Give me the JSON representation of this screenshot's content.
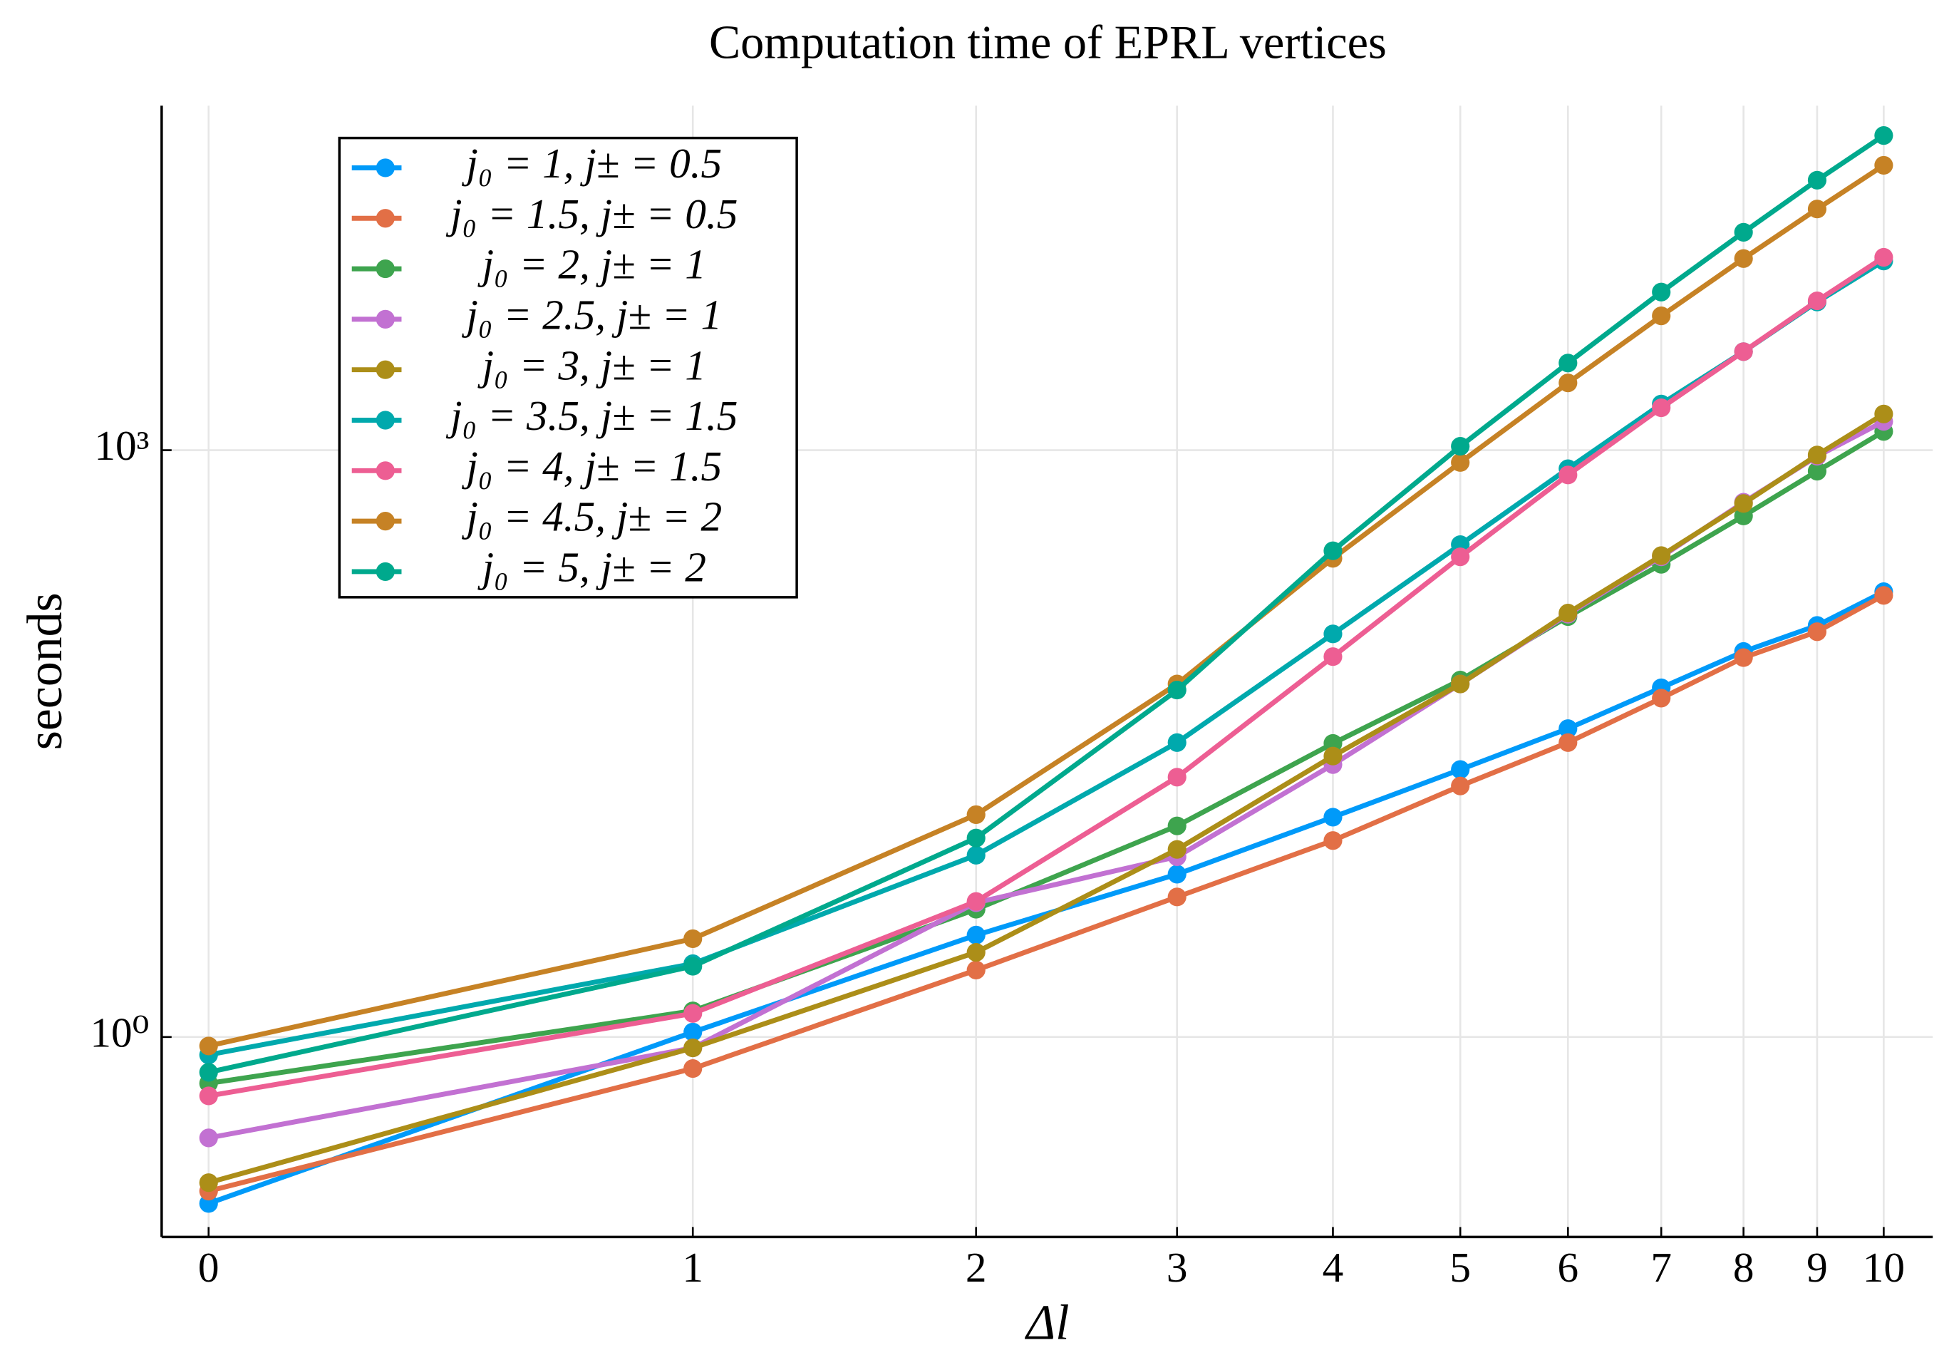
{
  "chart_data": {
    "type": "line",
    "title": "Computation time of EPRL vertices",
    "xlabel": "Δl",
    "ylabel": "seconds",
    "x": [
      0,
      1,
      2,
      3,
      4,
      5,
      6,
      7,
      8,
      9,
      10
    ],
    "xscale": "log1p",
    "yscale": "log",
    "xlim": [
      -0.065,
      10.8
    ],
    "ylim": [
      0.095,
      57700
    ],
    "xticks": [
      0,
      1,
      2,
      3,
      4,
      5,
      6,
      7,
      8,
      9,
      10
    ],
    "yticks": [
      {
        "value": 1,
        "label": "10⁰"
      },
      {
        "value": 1000,
        "label": "10³"
      }
    ],
    "grid": true,
    "legend": "top left",
    "series": [
      {
        "name": "j₀ = 1, j± = 0.5",
        "color": "#009af9",
        "values": [
          0.141,
          1.06,
          3.32,
          6.8,
          13.3,
          23.3,
          37.7,
          61,
          93.5,
          127,
          189
        ]
      },
      {
        "name": "j₀ = 1.5, j± = 0.5",
        "color": "#e26f46",
        "values": [
          0.163,
          0.69,
          2.2,
          5.2,
          10.1,
          19.2,
          32,
          54,
          87,
          118,
          181
        ]
      },
      {
        "name": "j₀ = 2, j± = 1",
        "color": "#3ea44e",
        "values": [
          0.58,
          1.36,
          4.5,
          12,
          31.7,
          66.8,
          141,
          261,
          461,
          781,
          1247
        ]
      },
      {
        "name": "j₀ = 2.5, j± = 1",
        "color": "#c271d2",
        "values": [
          0.305,
          0.88,
          4.86,
          8.35,
          24.7,
          63.8,
          145,
          285,
          542,
          931,
          1403
        ]
      },
      {
        "name": "j₀ = 3, j± = 1",
        "color": "#ac8e18",
        "values": [
          0.18,
          0.88,
          2.71,
          9.1,
          27.3,
          63.8,
          147,
          289,
          534,
          945,
          1531
        ]
      },
      {
        "name": "j₀ = 3.5, j± = 1.5",
        "color": "#00a9ad",
        "values": [
          0.81,
          2.37,
          8.5,
          32,
          115,
          329,
          804,
          1722,
          3190,
          5720,
          9270
        ]
      },
      {
        "name": "j₀ = 4, j± = 1.5",
        "color": "#ed5e93",
        "values": [
          0.5,
          1.32,
          4.93,
          21.3,
          88,
          285,
          747,
          1648,
          3190,
          5800,
          9680
        ]
      },
      {
        "name": "j₀ = 4.5, j± = 2",
        "color": "#c68225",
        "values": [
          0.9,
          3.18,
          13.7,
          63.8,
          280,
          865,
          2208,
          4860,
          9540,
          17100,
          28600
        ]
      },
      {
        "name": "j₀ = 5, j± = 2",
        "color": "#00a98d",
        "values": [
          0.66,
          2.3,
          10.4,
          59.4,
          306,
          1047,
          2790,
          6430,
          13000,
          24000,
          40600
        ]
      }
    ]
  }
}
